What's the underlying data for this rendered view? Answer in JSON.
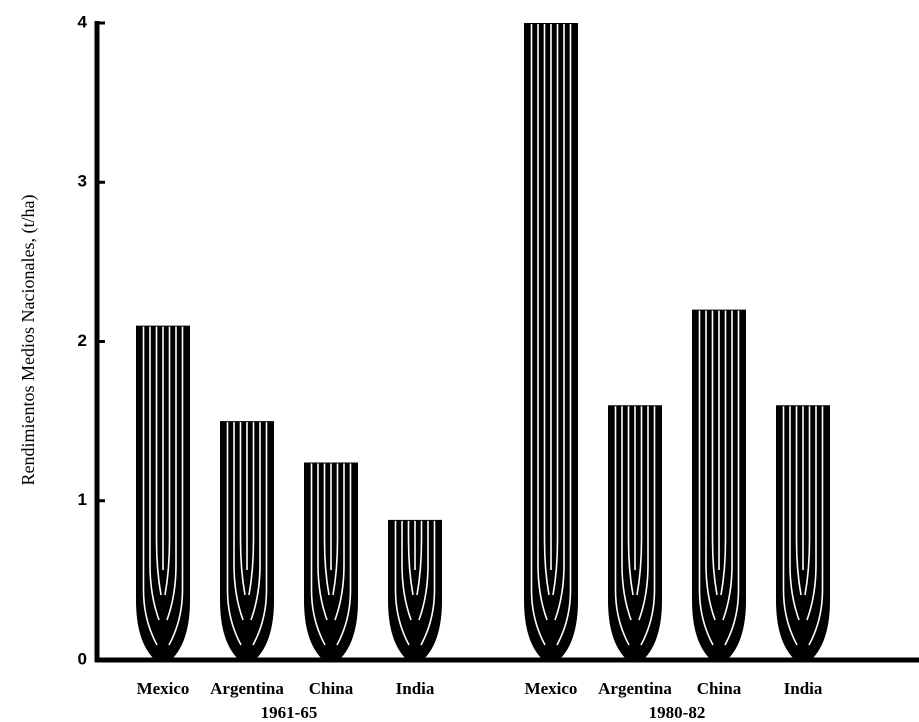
{
  "chart_data": {
    "type": "bar",
    "y_label": "Rendimientos Medios Nacionales, (t/ha)",
    "groups": [
      {
        "name": "1961-65",
        "categories": [
          "Mexico",
          "Argentina",
          "China",
          "India"
        ],
        "values": [
          2.1,
          1.5,
          1.24,
          0.88
        ]
      },
      {
        "name": "1980-82",
        "categories": [
          "Mexico",
          "Argentina",
          "China",
          "India"
        ],
        "values": [
          4.0,
          1.6,
          2.2,
          1.6
        ]
      }
    ],
    "color": "#000000",
    "ylim": [
      0,
      4
    ],
    "yticks": [
      0,
      1,
      2,
      3,
      4
    ],
    "grid": false
  }
}
